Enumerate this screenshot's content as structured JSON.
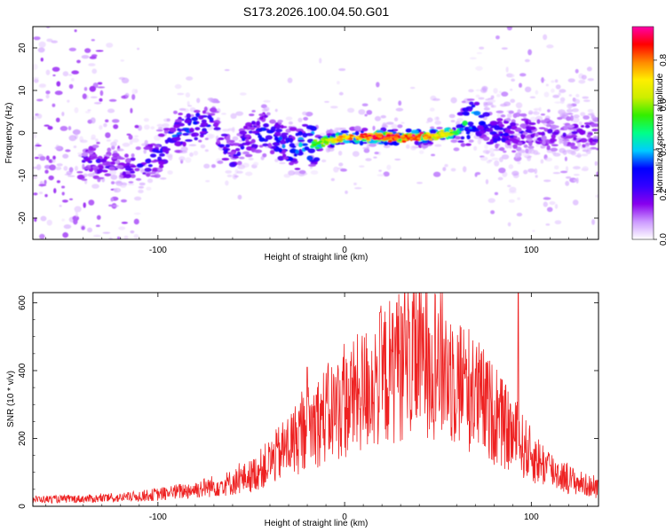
{
  "title": "S173.2026.100.04.50.G01",
  "colors": {
    "axis": "#000000",
    "snr_line": "#ee2222",
    "background": "#ffffff"
  },
  "chart_data": [
    {
      "type": "heatmap",
      "title": "S173.2026.100.04.50.G01",
      "xlabel": "Height of straight line (km)",
      "ylabel": "Frequency (Hz)",
      "xlim": [
        -167,
        136
      ],
      "ylim": [
        -25,
        25
      ],
      "xticks": [
        -100,
        0,
        100
      ],
      "yticks": [
        -20,
        -10,
        0,
        10,
        20
      ],
      "colorbar": {
        "label": "Normalized spectral amplitude",
        "range": [
          0,
          0.95
        ],
        "ticks": [
          "0.0",
          "0.2",
          "0.4",
          "0.6",
          "0.8"
        ],
        "tick_values": [
          0.0,
          0.2,
          0.4,
          0.6,
          0.8
        ],
        "colormap": [
          "#ffffff",
          "#cc99ff",
          "#8800ee",
          "#3300ff",
          "#0000ff",
          "#00ccff",
          "#00ff88",
          "#33ee00",
          "#ccee00",
          "#ffee00",
          "#ff8800",
          "#ff0000",
          "#ff00aa"
        ]
      },
      "ridge": {
        "description": "frequency ridge center (Hz) vs height (km)",
        "x": [
          -130,
          -120,
          -110,
          -100,
          -90,
          -80,
          -70,
          -60,
          -50,
          -40,
          -30,
          -20,
          -10,
          0,
          20,
          40,
          60,
          70,
          80,
          100,
          120,
          136
        ],
        "y": [
          -7,
          -8,
          -8,
          -5,
          0,
          2,
          2,
          -6,
          0,
          0,
          -4,
          -3,
          -2,
          -1,
          -1,
          -1,
          0,
          4,
          0,
          0,
          0,
          0
        ],
        "amplitude": [
          0.22,
          0.2,
          0.25,
          0.3,
          0.35,
          0.35,
          0.3,
          0.25,
          0.3,
          0.35,
          0.35,
          0.55,
          0.7,
          0.85,
          0.95,
          0.95,
          0.6,
          0.45,
          0.3,
          0.2,
          0.2,
          0.2
        ]
      }
    },
    {
      "type": "line",
      "title": "",
      "xlabel": "Height of straight line (km)",
      "ylabel": "SNR (10 * v/v)",
      "xlim": [
        -167,
        136
      ],
      "ylim": [
        0,
        630
      ],
      "xticks": [
        -100,
        0,
        100
      ],
      "yticks": [
        0,
        200,
        400,
        600
      ],
      "series": [
        {
          "name": "SNR",
          "color": "#ee2222",
          "envelope_x": [
            -167,
            -140,
            -120,
            -100,
            -80,
            -60,
            -50,
            -40,
            -30,
            -20,
            -10,
            0,
            10,
            20,
            30,
            40,
            45,
            50,
            60,
            70,
            80,
            90,
            100,
            110,
            120,
            136
          ],
          "envelope_y": [
            20,
            22,
            25,
            35,
            50,
            70,
            90,
            130,
            180,
            230,
            270,
            300,
            340,
            380,
            420,
            440,
            445,
            430,
            380,
            330,
            270,
            210,
            150,
            110,
            80,
            50
          ],
          "peaks_x": [
            -20,
            5,
            25,
            28,
            45,
            93
          ],
          "peaks_y": [
            410,
            420,
            460,
            600,
            525,
            630
          ]
        }
      ]
    }
  ]
}
